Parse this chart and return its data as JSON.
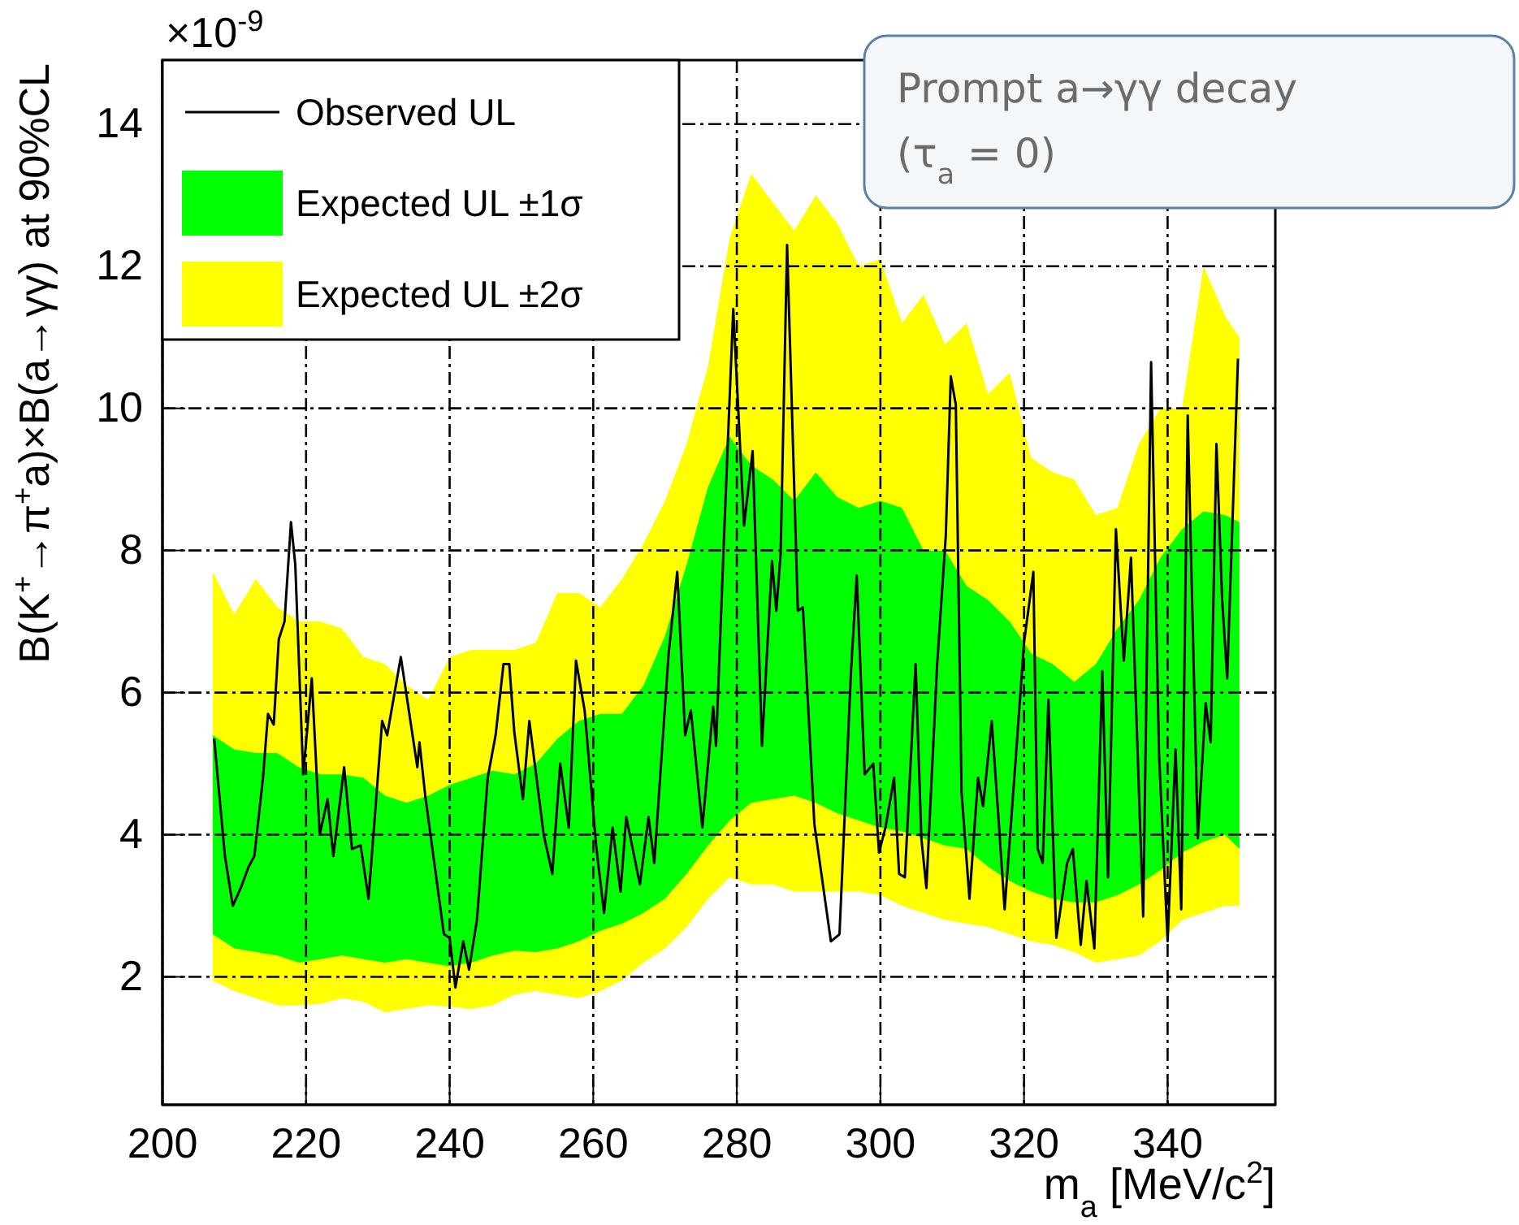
{
  "chart_data": {
    "type": "line",
    "xlabel": "m$_{a}$ [MeV/c$^{2}$]",
    "ylabel": "B(K$^{+}$→π$^{+}$a)×B(a→γγ) at 90%CL",
    "annotations": [
      "×10$^{-9}$",
      "Prompt a→γγ decay",
      "(τ$_{a}$ = 0)"
    ],
    "xlim": [
      200,
      355
    ],
    "xticks": [
      200,
      220,
      240,
      260,
      280,
      300,
      320,
      340
    ],
    "ylim": [
      0.2,
      14.9
    ],
    "yticks": [
      2,
      4,
      6,
      8,
      10,
      12,
      14
    ],
    "grid": true,
    "legend": "top left",
    "marker": "none",
    "line_style": "solid",
    "series": [
      {
        "name": "Observed UL",
        "color": "#000000",
        "x": [
          207.2,
          208.7,
          209.4,
          209.8,
          210.9,
          212,
          212.8,
          214,
          214.7,
          215.5,
          216.2,
          217,
          217.9,
          218.5,
          219.6,
          220.8,
          221.9,
          223,
          223.8,
          225.3,
          226.4,
          227.6,
          228.7,
          230.6,
          231.3,
          233.2,
          235.5,
          235.8,
          236.6,
          239.2,
          240,
          240.8,
          241.9,
          242.7,
          243.8,
          245.3,
          246.4,
          247.5,
          248.3,
          249,
          250.2,
          251.1,
          253.1,
          254.3,
          255.4,
          256.6,
          257.6,
          258.8,
          260.4,
          261.5,
          262.7,
          263.8,
          264.6,
          266.5,
          267.7,
          268.5,
          270.5,
          271.7,
          272.8,
          273.6,
          275.2,
          276.7,
          277.1,
          278.3,
          279.5,
          281,
          282.2,
          283.5,
          284.9,
          285.5,
          286.1,
          287,
          288.5,
          289.2,
          290.8,
          293.1,
          294.3,
          295.9,
          296.7,
          297.8,
          299,
          299.8,
          300.7,
          301.9,
          302.6,
          303.4,
          304.9,
          305.7,
          306.4,
          307.9,
          309.1,
          309.8,
          310.5,
          311.3,
          312.4,
          313.6,
          314.3,
          315.5,
          316.6,
          317.3,
          318.9,
          320,
          321.3,
          321.9,
          322.6,
          323.4,
          324.5,
          326,
          326.8,
          327.9,
          328.7,
          329.8,
          330.9,
          331.7,
          332.8,
          333.9,
          334.9,
          336.6,
          337.7,
          338.8,
          340,
          341.1,
          341.9,
          342.8,
          344.2,
          345.3,
          346,
          346.8,
          347.6,
          348.3,
          349.8
        ],
        "values": [
          5.35,
          3.7,
          3.25,
          3.0,
          3.25,
          3.55,
          3.7,
          4.8,
          5.7,
          5.55,
          6.75,
          7.0,
          8.4,
          7.8,
          4.85,
          6.2,
          4.0,
          4.5,
          3.7,
          4.95,
          3.8,
          3.85,
          3.1,
          5.6,
          5.4,
          6.5,
          4.95,
          5.3,
          4.55,
          2.6,
          2.55,
          1.85,
          2.5,
          2.1,
          2.8,
          4.8,
          5.4,
          6.4,
          6.4,
          5.45,
          4.5,
          5.6,
          4.0,
          3.45,
          5.0,
          4.1,
          6.45,
          5.75,
          3.85,
          2.9,
          4.1,
          3.2,
          4.25,
          3.3,
          4.25,
          3.6,
          6.55,
          7.7,
          5.4,
          5.75,
          4.1,
          5.8,
          5.25,
          8.4,
          11.4,
          8.35,
          9.4,
          5.25,
          7.85,
          7.15,
          7.95,
          12.3,
          7.15,
          7.2,
          4.15,
          2.5,
          2.6,
          6.3,
          7.65,
          4.85,
          5.0,
          3.75,
          4.1,
          4.8,
          3.45,
          3.4,
          6.4,
          3.95,
          3.25,
          6.4,
          8.2,
          10.45,
          10.05,
          4.6,
          3.1,
          4.8,
          4.4,
          5.6,
          4.0,
          2.95,
          5.15,
          6.7,
          7.7,
          3.8,
          3.6,
          5.9,
          2.55,
          3.6,
          3.8,
          2.45,
          3.35,
          2.4,
          6.3,
          3.4,
          8.3,
          6.45,
          7.9,
          2.85,
          10.65,
          5.15,
          2.5,
          5.2,
          2.95,
          9.9,
          3.95,
          5.85,
          5.3,
          9.5,
          7.3,
          6.2,
          10.7
        ]
      },
      {
        "name": "Expected UL ±1σ",
        "type": "area",
        "color": "#00ff00",
        "values": [
          null,
          null,
          null,
          null,
          null,
          null,
          null,
          null,
          null,
          null,
          null,
          null,
          null,
          null,
          null,
          null,
          null,
          null,
          null,
          null,
          null,
          null,
          null,
          null,
          null,
          null,
          null,
          null,
          null,
          null,
          null,
          null,
          null,
          null,
          null,
          null,
          null,
          null,
          null,
          null,
          null,
          null,
          null,
          null,
          null,
          null,
          null,
          null,
          null
        ],
        "x": [
          207,
          210,
          213,
          216,
          219,
          222,
          225,
          228,
          231,
          234,
          237,
          240,
          243,
          246,
          249,
          252,
          255,
          258,
          261,
          264,
          267,
          270,
          273,
          276,
          279,
          282,
          285,
          288,
          291,
          294,
          297,
          300,
          303,
          306,
          309,
          312,
          315,
          318,
          321,
          324,
          327,
          330,
          333,
          336,
          339,
          342,
          345,
          348,
          350
        ],
        "lower": [
          2.6,
          2.4,
          2.35,
          2.3,
          2.2,
          2.25,
          2.3,
          2.25,
          2.2,
          2.25,
          2.2,
          2.15,
          2.2,
          2.3,
          2.37,
          2.35,
          2.4,
          2.5,
          2.65,
          2.75,
          2.9,
          3.1,
          3.45,
          3.85,
          4.2,
          4.45,
          4.5,
          4.55,
          4.45,
          4.3,
          4.2,
          4.1,
          4.05,
          3.95,
          3.85,
          3.8,
          3.55,
          3.35,
          3.2,
          3.1,
          3.05,
          3.05,
          3.15,
          3.3,
          3.5,
          3.75,
          3.9,
          4.0,
          3.8
        ],
        "upper": [
          5.4,
          5.2,
          5.15,
          5.15,
          4.95,
          4.85,
          4.85,
          4.8,
          4.55,
          4.45,
          4.55,
          4.7,
          4.8,
          4.9,
          4.85,
          5.0,
          5.35,
          5.6,
          5.7,
          5.7,
          6.1,
          6.8,
          7.8,
          8.9,
          9.6,
          9.2,
          9.0,
          8.7,
          9.1,
          8.75,
          8.6,
          8.7,
          8.6,
          8.0,
          8.0,
          7.5,
          7.3,
          7.0,
          6.55,
          6.4,
          6.15,
          6.4,
          6.9,
          7.3,
          7.9,
          8.3,
          8.55,
          8.5,
          8.4
        ]
      },
      {
        "name": "Expected UL ±2σ",
        "type": "area",
        "color": "#ffff00",
        "values": [
          null,
          null,
          null,
          null,
          null,
          null,
          null,
          null,
          null,
          null,
          null,
          null,
          null,
          null,
          null,
          null,
          null,
          null,
          null,
          null,
          null,
          null,
          null,
          null,
          null,
          null,
          null,
          null,
          null,
          null,
          null,
          null,
          null,
          null,
          null,
          null,
          null,
          null,
          null,
          null,
          null,
          null,
          null,
          null,
          null,
          null,
          null,
          null,
          null
        ],
        "x": [
          207,
          210,
          213,
          216,
          219,
          222,
          225,
          228,
          231,
          234,
          237,
          240,
          243,
          246,
          249,
          252,
          255,
          258,
          261,
          264,
          267,
          270,
          273,
          276,
          279,
          282,
          285,
          288,
          291,
          294,
          297,
          300,
          303,
          306,
          309,
          312,
          315,
          318,
          321,
          324,
          327,
          330,
          333,
          336,
          339,
          342,
          345,
          348,
          350
        ],
        "lower": [
          1.95,
          1.8,
          1.7,
          1.6,
          1.6,
          1.62,
          1.7,
          1.65,
          1.5,
          1.55,
          1.6,
          1.58,
          1.55,
          1.6,
          1.75,
          1.8,
          1.75,
          1.7,
          1.8,
          1.95,
          2.2,
          2.4,
          2.7,
          3.1,
          3.4,
          3.3,
          3.3,
          3.2,
          3.2,
          3.2,
          3.2,
          3.15,
          3.0,
          2.9,
          2.8,
          2.75,
          2.7,
          2.6,
          2.5,
          2.45,
          2.35,
          2.2,
          2.25,
          2.3,
          2.5,
          2.8,
          2.9,
          3.0,
          3.0
        ],
        "upper": [
          7.7,
          7.1,
          7.6,
          7.2,
          7.0,
          7.0,
          6.9,
          6.5,
          6.4,
          6.1,
          5.9,
          6.5,
          6.6,
          6.6,
          6.6,
          6.7,
          7.4,
          7.4,
          7.2,
          7.6,
          8.1,
          8.7,
          9.5,
          10.6,
          12.4,
          13.3,
          12.9,
          12.5,
          13.0,
          12.6,
          12.0,
          12.1,
          11.2,
          11.6,
          10.9,
          11.2,
          10.2,
          10.5,
          9.3,
          9.1,
          9.0,
          8.5,
          8.6,
          9.5,
          10.0,
          10.0,
          12.0,
          11.3,
          11.0
        ]
      }
    ]
  }
}
